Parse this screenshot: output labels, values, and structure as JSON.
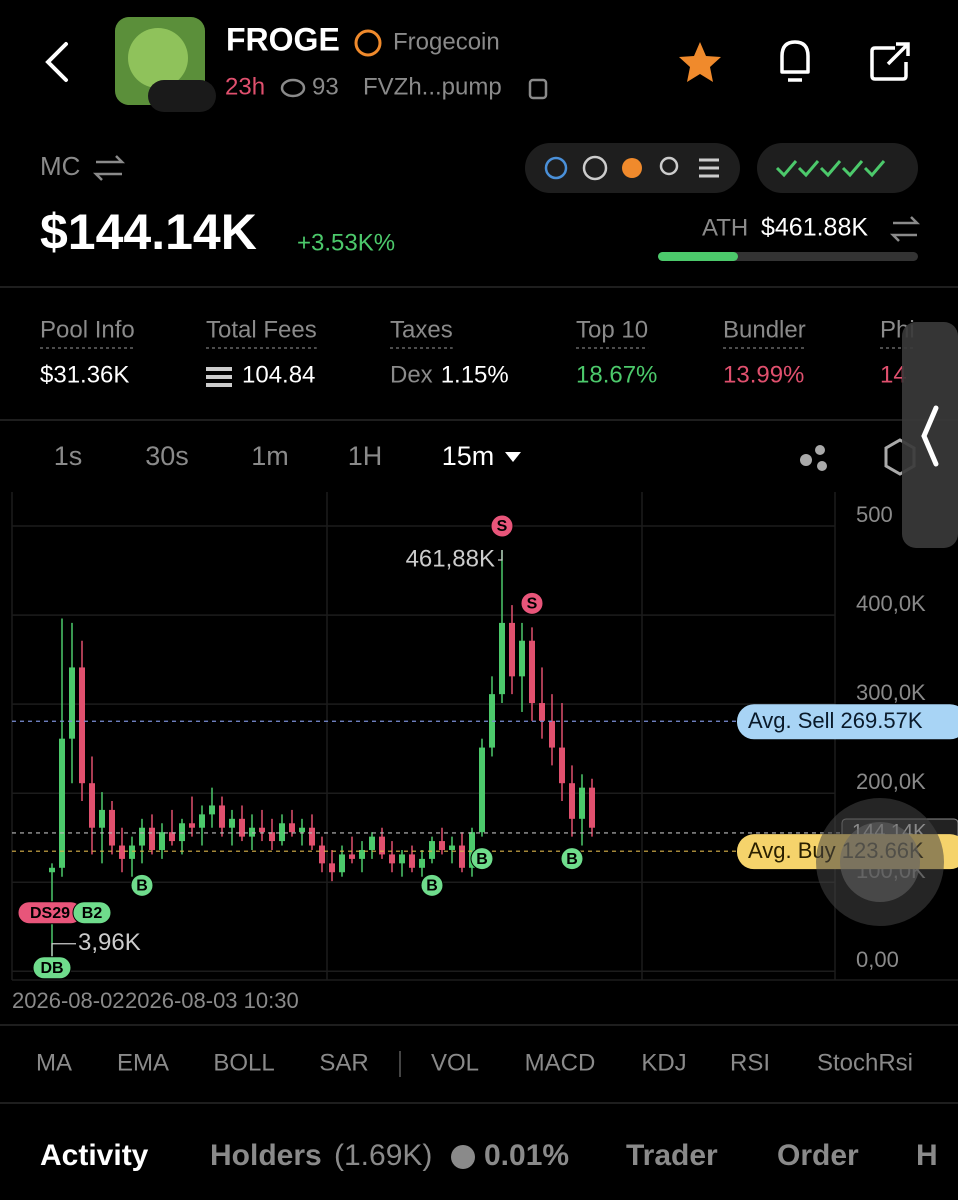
{
  "header": {
    "name": "FROGE",
    "full_name": "Frogecoin",
    "age": "23h",
    "views": "93",
    "address": "FVZh...pump"
  },
  "market": {
    "mc_label": "MC",
    "mc_value": "$144.14K",
    "change": "+3.53K%",
    "ath_label": "ATH",
    "ath_value": "$461.88K"
  },
  "stats": [
    {
      "label": "Pool Info",
      "value": "$31.36K"
    },
    {
      "label": "Total Fees",
      "value": "104.84"
    },
    {
      "label": "Taxes",
      "prefix": "Dex",
      "value": "1.15%"
    },
    {
      "label": "Top 10",
      "value": "18.67%"
    },
    {
      "label": "Bundler",
      "value": "13.99%"
    },
    {
      "label": "Phi",
      "value": "14"
    }
  ],
  "intervals": [
    "1s",
    "30s",
    "1m",
    "1H",
    "15m"
  ],
  "chart_data": {
    "type": "candlestick",
    "ylim": [
      -21,
      527
    ],
    "yticks": [
      {
        "value": 500,
        "label": "500"
      },
      {
        "value": 400,
        "label": "400,0K"
      },
      {
        "value": 300,
        "label": "300,0K"
      },
      {
        "value": 200,
        "label": "200,0K"
      },
      {
        "value": 100,
        "label": "100,0K"
      },
      {
        "value": 0,
        "label": "0,00"
      }
    ],
    "x_labels": [
      "2026-08-02",
      "2026-08-03 10:30"
    ],
    "up_color": "#4cc96b",
    "down_color": "#e0506e",
    "candles": [
      [
        100,
        110,
        3.96,
        105
      ],
      [
        105,
        385,
        95,
        250
      ],
      [
        250,
        380,
        200,
        330
      ],
      [
        330,
        360,
        180,
        200
      ],
      [
        200,
        230,
        120,
        150
      ],
      [
        150,
        190,
        110,
        170
      ],
      [
        170,
        180,
        120,
        130
      ],
      [
        130,
        150,
        100,
        115
      ],
      [
        115,
        140,
        95,
        130
      ],
      [
        130,
        160,
        110,
        150
      ],
      [
        150,
        165,
        120,
        125
      ],
      [
        125,
        155,
        115,
        145
      ],
      [
        145,
        170,
        130,
        135
      ],
      [
        135,
        160,
        120,
        155
      ],
      [
        155,
        185,
        140,
        150
      ],
      [
        150,
        175,
        130,
        165
      ],
      [
        165,
        195,
        150,
        175
      ],
      [
        175,
        185,
        140,
        150
      ],
      [
        150,
        170,
        130,
        160
      ],
      [
        160,
        175,
        135,
        140
      ],
      [
        140,
        165,
        125,
        150
      ],
      [
        150,
        170,
        135,
        145
      ],
      [
        145,
        160,
        125,
        135
      ],
      [
        135,
        165,
        130,
        155
      ],
      [
        155,
        170,
        140,
        145
      ],
      [
        145,
        160,
        130,
        150
      ],
      [
        150,
        165,
        125,
        130
      ],
      [
        130,
        140,
        100,
        110
      ],
      [
        110,
        125,
        90,
        100
      ],
      [
        100,
        130,
        95,
        120
      ],
      [
        120,
        140,
        110,
        115
      ],
      [
        115,
        135,
        100,
        125
      ],
      [
        125,
        145,
        115,
        140
      ],
      [
        140,
        150,
        115,
        120
      ],
      [
        120,
        135,
        100,
        110
      ],
      [
        110,
        125,
        95,
        120
      ],
      [
        120,
        130,
        100,
        105
      ],
      [
        105,
        125,
        95,
        115
      ],
      [
        115,
        140,
        110,
        135
      ],
      [
        135,
        150,
        120,
        125
      ],
      [
        125,
        140,
        110,
        130
      ],
      [
        130,
        145,
        100,
        105
      ],
      [
        105,
        150,
        95,
        145
      ],
      [
        145,
        250,
        140,
        240
      ],
      [
        240,
        320,
        230,
        300
      ],
      [
        300,
        461.88,
        290,
        380
      ],
      [
        380,
        400,
        300,
        320
      ],
      [
        320,
        380,
        280,
        360
      ],
      [
        360,
        375,
        270,
        290
      ],
      [
        290,
        330,
        250,
        270
      ],
      [
        270,
        300,
        220,
        240
      ],
      [
        240,
        290,
        180,
        200
      ],
      [
        200,
        220,
        140,
        160
      ],
      [
        160,
        210,
        130,
        195
      ],
      [
        195,
        205,
        140,
        150
      ]
    ],
    "max": {
      "value": 461.88,
      "label": "461,88K"
    },
    "min": {
      "value": 3.96,
      "label": "3,96K"
    },
    "avg_sell": {
      "value": 269.57,
      "label": "Avg. Sell 269.57K"
    },
    "avg_buy": {
      "value": 123.66,
      "label": "Avg. Buy 123.66K"
    },
    "current": {
      "value": 144.14,
      "label": "144,14K"
    },
    "markers": [
      {
        "label": "DB",
        "candle": 0,
        "side": "buy"
      },
      {
        "label": "DS29",
        "candle": 0,
        "side": "sell"
      },
      {
        "label": "B2",
        "candle": 4,
        "side": "buy"
      },
      {
        "label": "B",
        "candle": 9,
        "side": "buy"
      },
      {
        "label": "B",
        "candle": 38,
        "side": "buy"
      },
      {
        "label": "B",
        "candle": 43,
        "side": "buy"
      },
      {
        "label": "S",
        "candle": 45,
        "side": "sell"
      },
      {
        "label": "S",
        "candle": 48,
        "side": "sell"
      },
      {
        "label": "B",
        "candle": 52,
        "side": "buy"
      }
    ]
  },
  "indicators": [
    "MA",
    "EMA",
    "BOLL",
    "SAR",
    "VOL",
    "MACD",
    "KDJ",
    "RSI",
    "StochRsi"
  ],
  "tabs": {
    "activity": "Activity",
    "holders": "Holders",
    "holders_count": "(1.69K)",
    "dev": "0.01%",
    "trader": "Trader",
    "order": "Order",
    "more": "H"
  }
}
